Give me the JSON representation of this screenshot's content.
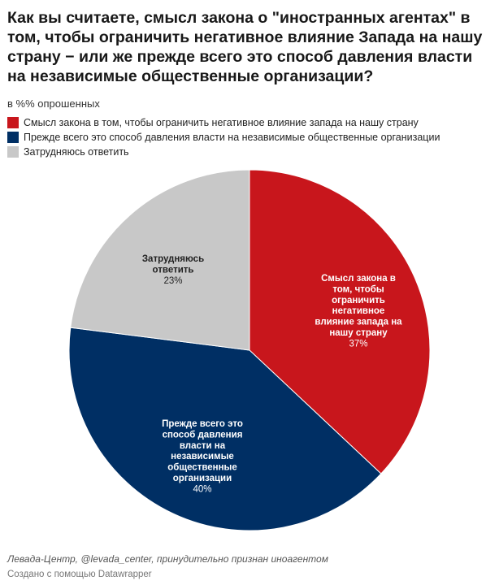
{
  "title": "Как вы считаете, смысл закона о \"иностранных агентах\" в том, чтобы ограничить негативное влияние Запада на нашу страну − или же прежде всего это способ давления власти на независимые общественные организации?",
  "subtitle": "в %% опрошенных",
  "footer": {
    "source": "Левада-Центр, @levada_center, принудительно признан иноагентом",
    "credit": "Создано с помощью Datawrapper"
  },
  "chart_data": {
    "type": "pie",
    "legend_position": "top-left",
    "slices": [
      {
        "name": "Смысл закона в том, чтобы ограничить негативное влияние запада на нашу страну",
        "label_lines": [
          "Смысл закона в",
          "том, чтобы",
          "ограничить",
          "негативное",
          "влияние запада на",
          "нашу страну"
        ],
        "value": 37,
        "value_text": "37%",
        "color": "#c8161c",
        "text_color": "#ffffff"
      },
      {
        "name": "Прежде всего это способ давления власти на независимые общественные организации",
        "label_lines": [
          "Прежде всего это",
          "способ давления",
          "власти на",
          "независимые",
          "общественные",
          "организации"
        ],
        "value": 40,
        "value_text": "40%",
        "color": "#002f64",
        "text_color": "#ffffff"
      },
      {
        "name": "Затрудняюсь ответить",
        "label_lines": [
          "Затрудняюсь",
          "ответить"
        ],
        "value": 23,
        "value_text": "23%",
        "color": "#c8c8c8",
        "text_color": "#222222"
      }
    ]
  }
}
